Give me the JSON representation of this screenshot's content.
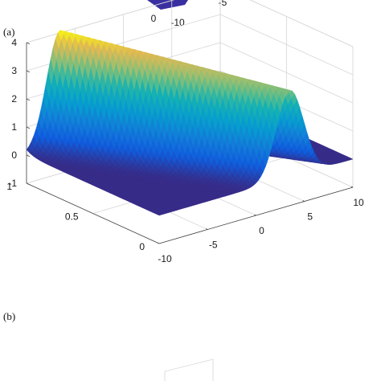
{
  "panels": {
    "a_label": "(a)",
    "b_label": "(b)"
  },
  "top_fragment_ticks": [
    "0",
    "-10",
    "-5"
  ],
  "chart_data": {
    "type": "surface",
    "title": "",
    "xlabel": "",
    "ylabel": "",
    "zlabel": "",
    "xlim": [
      -10,
      10
    ],
    "ylim": [
      0,
      1
    ],
    "zlim": [
      -1,
      4
    ],
    "x_ticks": [
      "-10",
      "-5",
      "0",
      "5",
      "10"
    ],
    "y_ticks": [
      "0",
      "0.5",
      "1"
    ],
    "z_ticks": [
      "-1",
      "0",
      "1",
      "2",
      "3",
      "4"
    ],
    "colormap": "parula",
    "grid": true,
    "surface": {
      "shape": "traveling bell-shaped pulse",
      "baseline": 0,
      "peak_height_at_y0": 3.1,
      "peak_height_at_y1": 4.1,
      "peak_x_at_y0": 3.5,
      "peak_x_at_y1": -6.5,
      "width_x": 2.0
    }
  }
}
